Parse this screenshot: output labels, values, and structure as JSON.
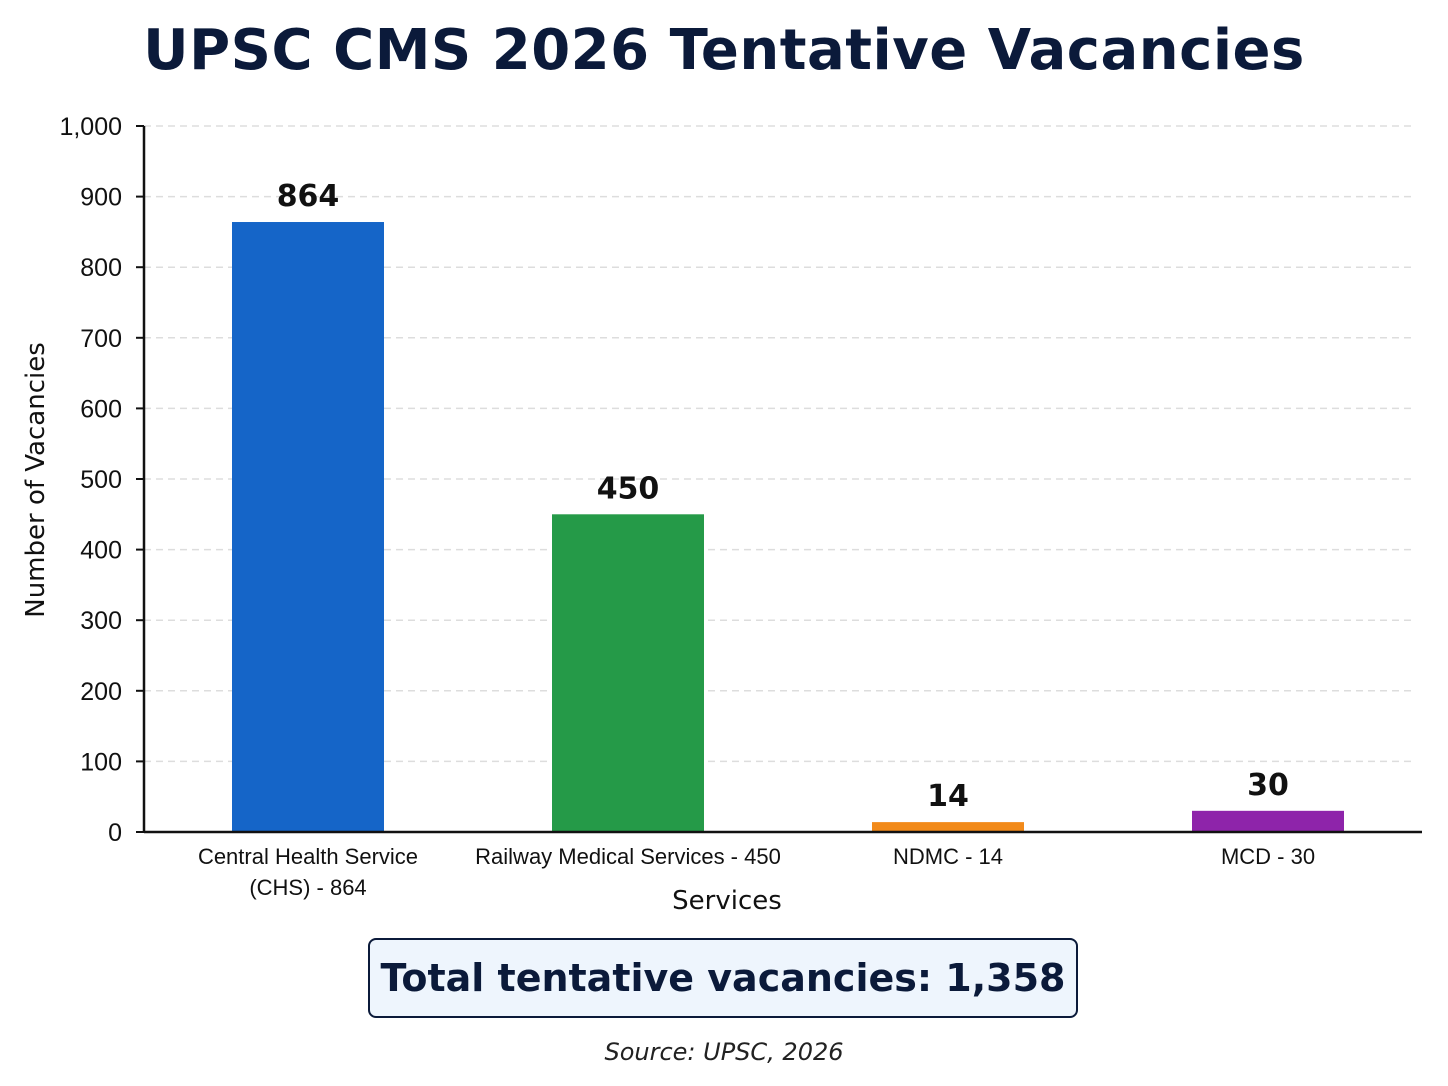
{
  "chart_data": {
    "type": "bar",
    "title": "UPSC CMS 2026 Tentative Vacancies",
    "xlabel": "Services",
    "ylabel": "Number of Vacancies",
    "categories": [
      [
        "Central Health Service",
        "(CHS) - 864"
      ],
      [
        "Railway Medical Services - 450"
      ],
      [
        "NDMC - 14"
      ],
      [
        "MCD - 30"
      ]
    ],
    "values": [
      864,
      450,
      14,
      30
    ],
    "data_labels": [
      "864",
      "450",
      "14",
      "30"
    ],
    "colors": [
      "#1565c8",
      "#259a48",
      "#f28a1a",
      "#8e24aa"
    ],
    "ylim": [
      0,
      1000
    ],
    "yticks": [
      0,
      100,
      200,
      300,
      400,
      500,
      600,
      700,
      800,
      900,
      1000
    ],
    "ytick_labels": [
      "0",
      "100",
      "200",
      "300",
      "400",
      "500",
      "600",
      "700",
      "800",
      "900",
      "1,000"
    ],
    "grid": true,
    "grid_color": "#dddddd"
  },
  "summary": {
    "total_text": "Total tentative vacancies: 1,358"
  },
  "source": {
    "text": "Source: UPSC, 2026"
  }
}
